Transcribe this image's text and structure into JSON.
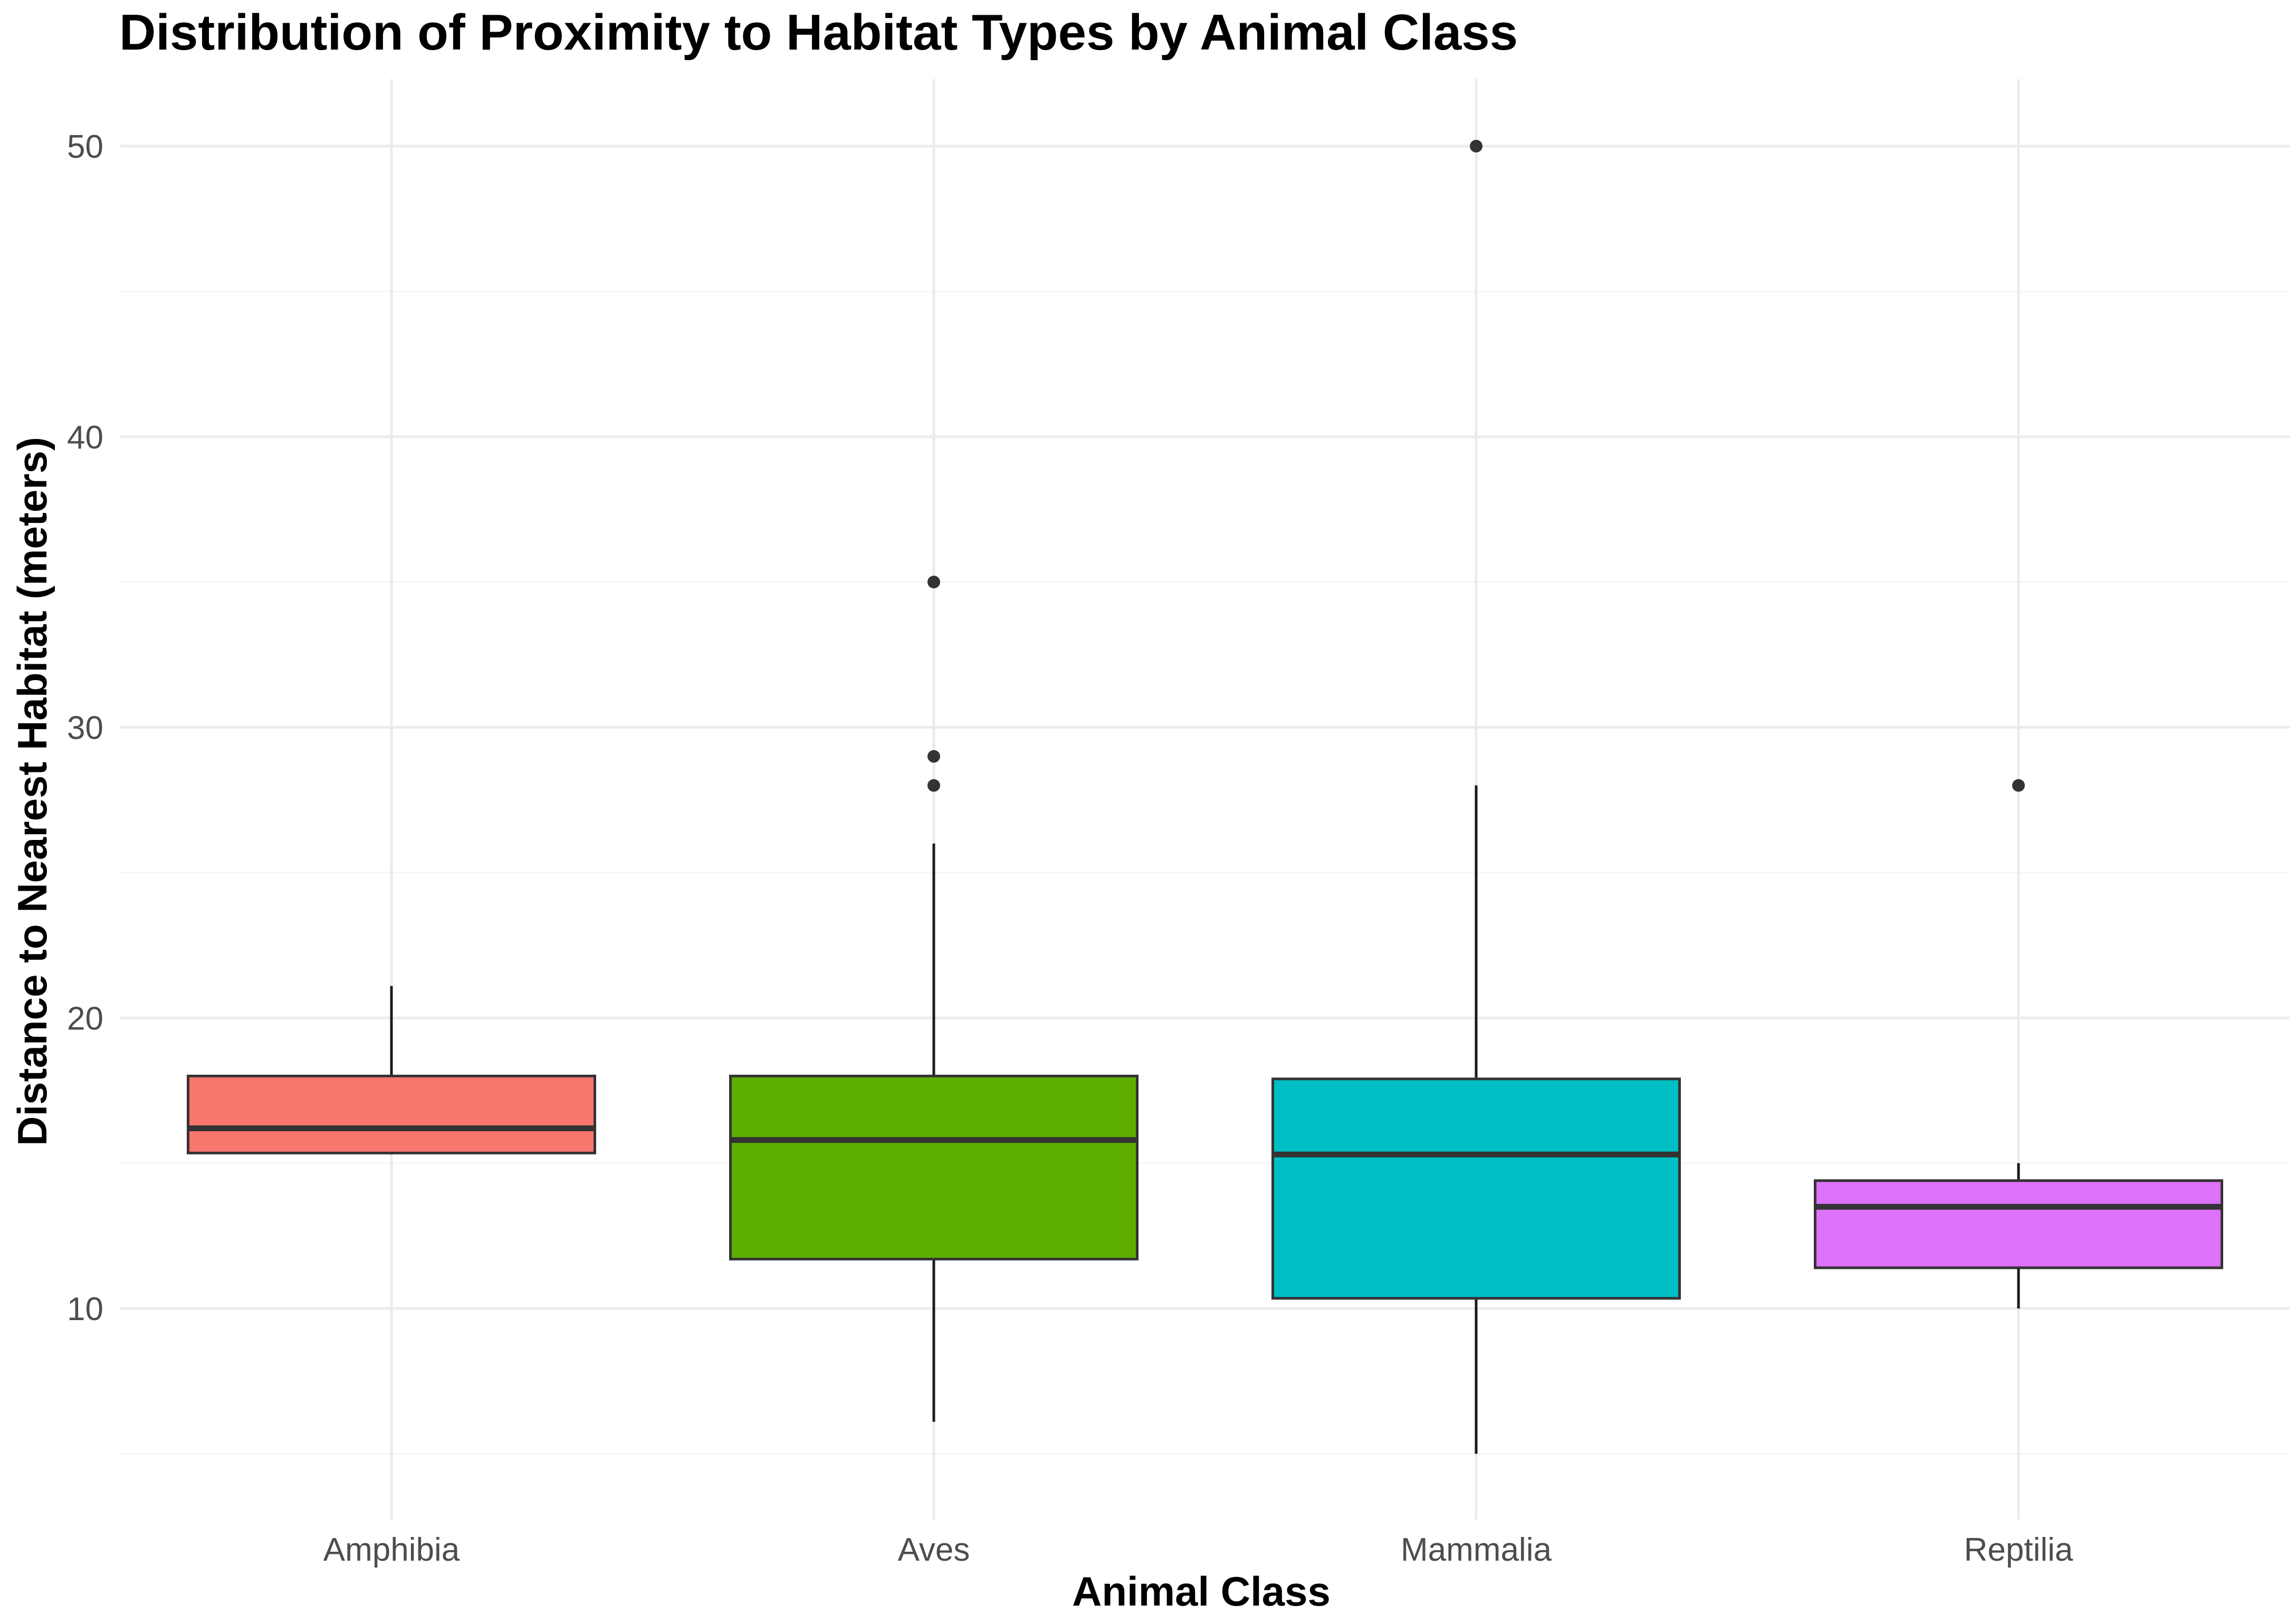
{
  "chart_data": {
    "type": "boxplot",
    "title": "Distribution of Proximity to Habitat Types by Animal Class",
    "xlabel": "Animal Class",
    "ylabel": "Distance to Nearest Habitat (meters)",
    "ylim": [
      3,
      52
    ],
    "yticks": [
      10,
      20,
      30,
      40,
      50
    ],
    "yminor": [
      5,
      15,
      25,
      35,
      45
    ],
    "grid": true,
    "legend": "none",
    "categories": [
      "Amphibia",
      "Aves",
      "Mammalia",
      "Reptilia"
    ],
    "series": [
      {
        "name": "Amphibia",
        "color": "#F8766D",
        "whisker_low": 15.3,
        "q1": 15.35,
        "median": 16.2,
        "q3": 18.0,
        "whisker_high": 21.1,
        "outliers": []
      },
      {
        "name": "Aves",
        "color": "#5EAE00",
        "whisker_low": 6.1,
        "q1": 11.7,
        "median": 15.8,
        "q3": 18.0,
        "whisker_high": 26.0,
        "outliers": [
          28.0,
          29.0,
          35.0
        ]
      },
      {
        "name": "Mammalia",
        "color": "#00BFC4",
        "whisker_low": 5.0,
        "q1": 10.35,
        "median": 15.3,
        "q3": 17.9,
        "whisker_high": 28.0,
        "outliers": [
          50.0
        ]
      },
      {
        "name": "Reptilia",
        "color": "#DC71FA",
        "whisker_low": 10.0,
        "q1": 11.4,
        "median": 13.5,
        "q3": 14.4,
        "whisker_high": 15.0,
        "outliers": [
          28.0
        ]
      }
    ]
  }
}
